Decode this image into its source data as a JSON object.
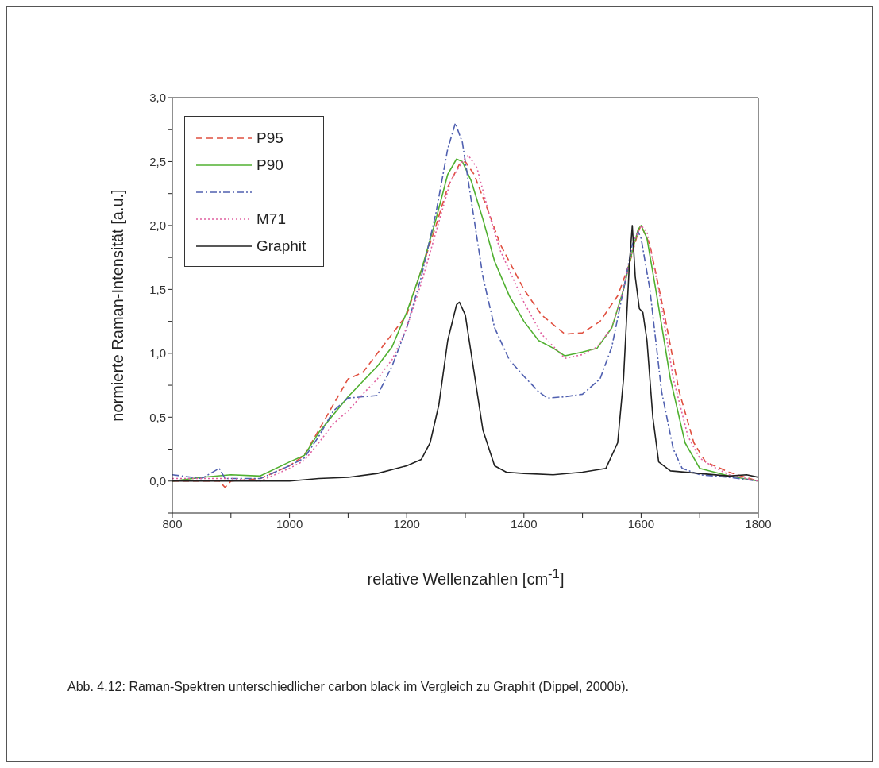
{
  "chart_data": {
    "type": "line",
    "xlabel": "relative Wellenzahlen [cm$^{-1}$]",
    "ylabel": "normierte Raman-Intensität [a.u.]",
    "annotations": [
      "Abb. 4.12: Raman-Spektren unterschiedlicher carbon black im Vergleich zu Graphit (Dippel, 2000b)."
    ],
    "xlim": [
      800,
      1800
    ],
    "ylim": [
      -0.25,
      3.0
    ],
    "xticks": [
      800,
      {
        "value": 900,
        "label": null
      },
      1000,
      {
        "value": 1100,
        "label": null
      },
      1200,
      {
        "value": 1300,
        "label": null
      },
      1400,
      {
        "value": 1500,
        "label": null
      },
      1600,
      {
        "value": 1700,
        "label": null
      },
      1800
    ],
    "yticks": [
      {
        "value": -0.25,
        "label": null
      },
      {
        "value": 0,
        "label": "0,0"
      },
      {
        "value": 0.25,
        "label": null
      },
      {
        "value": 0.5,
        "label": "0,5"
      },
      {
        "value": 0.75,
        "label": null
      },
      {
        "value": 1.0,
        "label": "1,0"
      },
      {
        "value": 1.25,
        "label": null
      },
      {
        "value": 1.5,
        "label": "1,5"
      },
      {
        "value": 1.75,
        "label": null
      },
      {
        "value": 2.0,
        "label": "2,0"
      },
      {
        "value": 2.25,
        "label": null
      },
      {
        "value": 2.5,
        "label": "2,5"
      },
      {
        "value": 2.75,
        "label": null
      },
      {
        "value": 3.0,
        "label": "3,0"
      }
    ],
    "grid": false,
    "legend": "top left",
    "marker": "none",
    "series": [
      {
        "name": "P95",
        "color": "#e05040",
        "line_style": "dashed",
        "x": [
          800,
          850,
          880,
          890,
          900,
          950,
          1000,
          1025,
          1050,
          1075,
          1100,
          1125,
          1150,
          1175,
          1200,
          1225,
          1250,
          1270,
          1290,
          1300,
          1315,
          1340,
          1360,
          1400,
          1430,
          1470,
          1500,
          1530,
          1560,
          1580,
          1595,
          1600,
          1615,
          1640,
          1665,
          1690,
          1710,
          1750,
          1800
        ],
        "values": [
          0.0,
          0.0,
          0.0,
          -0.05,
          0.0,
          0.02,
          0.12,
          0.2,
          0.4,
          0.6,
          0.8,
          0.85,
          1.0,
          1.15,
          1.3,
          1.65,
          2.0,
          2.3,
          2.48,
          2.5,
          2.4,
          2.1,
          1.85,
          1.5,
          1.3,
          1.15,
          1.16,
          1.25,
          1.45,
          1.7,
          1.95,
          2.0,
          1.85,
          1.3,
          0.7,
          0.3,
          0.15,
          0.07,
          0.0
        ]
      },
      {
        "name": "P90",
        "color": "#50b030",
        "line_style": "solid",
        "x": [
          800,
          850,
          900,
          950,
          1000,
          1025,
          1050,
          1075,
          1100,
          1125,
          1150,
          1175,
          1200,
          1225,
          1250,
          1270,
          1285,
          1295,
          1310,
          1330,
          1350,
          1375,
          1400,
          1425,
          1450,
          1470,
          1500,
          1525,
          1550,
          1570,
          1585,
          1595,
          1600,
          1610,
          1625,
          1650,
          1675,
          1700,
          1750,
          1800
        ],
        "values": [
          0.0,
          0.03,
          0.05,
          0.04,
          0.15,
          0.2,
          0.38,
          0.52,
          0.66,
          0.78,
          0.9,
          1.05,
          1.32,
          1.65,
          2.05,
          2.4,
          2.52,
          2.5,
          2.35,
          2.05,
          1.72,
          1.45,
          1.25,
          1.1,
          1.04,
          0.98,
          1.01,
          1.04,
          1.2,
          1.5,
          1.8,
          1.97,
          2.0,
          1.9,
          1.5,
          0.8,
          0.3,
          0.1,
          0.04,
          0.0
        ]
      },
      {
        "color": "#5060b0",
        "line_style": "dashdot",
        "x": [
          800,
          850,
          880,
          890,
          950,
          1000,
          1025,
          1050,
          1075,
          1100,
          1125,
          1150,
          1175,
          1200,
          1225,
          1250,
          1270,
          1283,
          1295,
          1310,
          1330,
          1350,
          1375,
          1400,
          1425,
          1440,
          1470,
          1500,
          1530,
          1550,
          1570,
          1585,
          1595,
          1600,
          1615,
          1635,
          1655,
          1670,
          1700,
          1750,
          1800
        ],
        "values": [
          0.05,
          0.02,
          0.1,
          0.02,
          0.02,
          0.12,
          0.18,
          0.35,
          0.55,
          0.65,
          0.66,
          0.67,
          0.9,
          1.2,
          1.6,
          2.1,
          2.6,
          2.8,
          2.65,
          2.2,
          1.6,
          1.2,
          0.95,
          0.82,
          0.7,
          0.65,
          0.66,
          0.68,
          0.8,
          1.05,
          1.5,
          1.85,
          1.95,
          1.9,
          1.5,
          0.7,
          0.25,
          0.1,
          0.05,
          0.03,
          0.0
        ]
      },
      {
        "name": "M71",
        "color": "#e060a0",
        "line_style": "dotted",
        "x": [
          800,
          850,
          900,
          950,
          1000,
          1025,
          1050,
          1075,
          1100,
          1125,
          1150,
          1175,
          1200,
          1225,
          1250,
          1275,
          1295,
          1305,
          1320,
          1340,
          1360,
          1400,
          1430,
          1470,
          1500,
          1525,
          1550,
          1570,
          1590,
          1600,
          1610,
          1630,
          1655,
          1680,
          1700,
          1720,
          1750,
          1800
        ],
        "values": [
          0.02,
          0.02,
          0.02,
          0.0,
          0.1,
          0.16,
          0.3,
          0.45,
          0.55,
          0.68,
          0.8,
          0.95,
          1.2,
          1.55,
          1.95,
          2.35,
          2.5,
          2.55,
          2.45,
          2.1,
          1.8,
          1.4,
          1.15,
          0.96,
          0.99,
          1.05,
          1.2,
          1.5,
          1.9,
          2.0,
          1.95,
          1.5,
          0.8,
          0.35,
          0.18,
          0.12,
          0.05,
          0.0
        ]
      },
      {
        "name": "Graphit",
        "color": "#202020",
        "line_style": "solid",
        "x": [
          800,
          850,
          900,
          950,
          1000,
          1050,
          1100,
          1150,
          1200,
          1225,
          1240,
          1255,
          1270,
          1285,
          1290,
          1300,
          1315,
          1330,
          1350,
          1370,
          1400,
          1450,
          1500,
          1540,
          1560,
          1570,
          1580,
          1585,
          1590,
          1597,
          1603,
          1610,
          1620,
          1630,
          1650,
          1700,
          1750,
          1780,
          1800
        ],
        "values": [
          0.0,
          0.0,
          0.0,
          0.0,
          0.0,
          0.02,
          0.03,
          0.06,
          0.12,
          0.17,
          0.3,
          0.6,
          1.1,
          1.38,
          1.4,
          1.3,
          0.85,
          0.4,
          0.12,
          0.07,
          0.06,
          0.05,
          0.07,
          0.1,
          0.3,
          0.8,
          1.7,
          2.0,
          1.6,
          1.35,
          1.32,
          1.1,
          0.5,
          0.15,
          0.08,
          0.06,
          0.04,
          0.05,
          0.03
        ]
      }
    ]
  }
}
